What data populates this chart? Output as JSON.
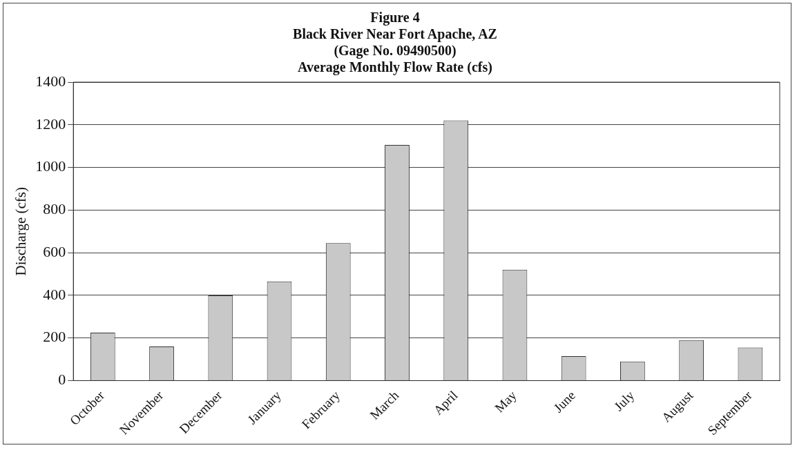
{
  "chart_data": {
    "type": "bar",
    "title": "Figure 4\nBlack River Near Fort Apache, AZ\n(Gage No. 09490500)\nAverage Monthly Flow Rate (cfs)",
    "ylabel": "Discharge (cfs)",
    "categories": [
      "October",
      "November",
      "December",
      "January",
      "February",
      "March",
      "April",
      "May",
      "June",
      "July",
      "August",
      "September"
    ],
    "values": [
      225,
      160,
      400,
      465,
      645,
      1105,
      1220,
      520,
      115,
      90,
      190,
      155
    ],
    "color": "#c8c8c8",
    "ylim": [
      0,
      1400
    ],
    "yticks": [
      0,
      200,
      400,
      600,
      800,
      1000,
      1200,
      1400
    ],
    "grid": "y",
    "legend": false
  }
}
